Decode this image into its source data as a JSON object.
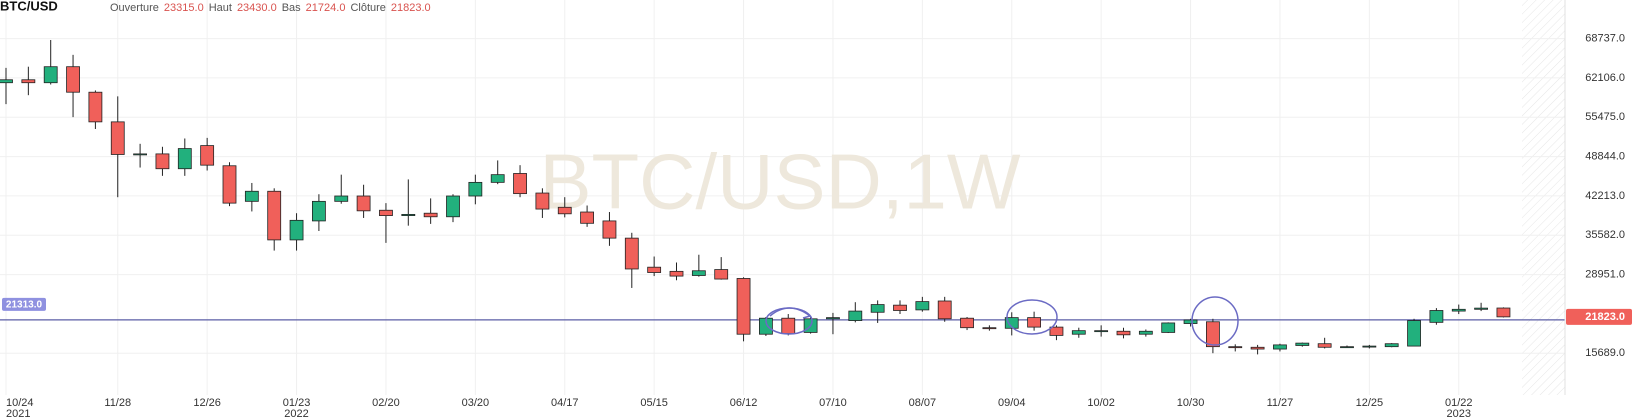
{
  "chart_data": {
    "type": "candlestick",
    "title": "BTC/USD",
    "watermark": "BTC/USD,1W",
    "ohlc_header": {
      "names": [
        "Ouverture",
        "Haut",
        "Bas",
        "Clôture"
      ],
      "values": [
        23315,
        23430,
        21724,
        21823
      ],
      "value_labels": [
        "23315.0",
        "23430.0",
        "21724.0",
        "21823.0"
      ]
    },
    "categories": [
      "10/24",
      null,
      null,
      null,
      null,
      "11/28",
      null,
      null,
      null,
      "12/26",
      null,
      null,
      null,
      "01/23",
      null,
      null,
      null,
      "02/20",
      null,
      null,
      null,
      "03/20",
      null,
      null,
      null,
      "04/17",
      null,
      null,
      null,
      "05/15",
      null,
      null,
      null,
      "06/12",
      null,
      null,
      null,
      "07/10",
      null,
      null,
      null,
      "08/07",
      null,
      null,
      null,
      "09/04",
      null,
      null,
      null,
      "10/02",
      null,
      null,
      null,
      "10/30",
      null,
      null,
      null,
      "11/27",
      null,
      null,
      null,
      "12/25",
      null,
      null,
      null,
      "01/22",
      null,
      null
    ],
    "category_years": [
      "2021",
      null,
      null,
      null,
      null,
      null,
      null,
      null,
      null,
      null,
      null,
      null,
      null,
      "2022",
      null,
      null,
      null,
      null,
      null,
      null,
      null,
      null,
      null,
      null,
      null,
      null,
      null,
      null,
      null,
      null,
      null,
      null,
      null,
      null,
      null,
      null,
      null,
      null,
      null,
      null,
      null,
      null,
      null,
      null,
      null,
      null,
      null,
      null,
      null,
      null,
      null,
      null,
      null,
      null,
      null,
      null,
      null,
      null,
      null,
      null,
      null,
      null,
      null,
      null,
      null,
      "2023",
      null,
      null
    ],
    "open": [
      61300,
      61800,
      61300,
      64000,
      59700,
      54700,
      49200,
      49300,
      46800,
      50700,
      47300,
      41300,
      43000,
      34800,
      38000,
      41300,
      42200,
      39800,
      38900,
      39300,
      38700,
      42200,
      44500,
      46000,
      42700,
      40300,
      39500,
      38000,
      35100,
      30200,
      29500,
      28800,
      29800,
      28300,
      18900,
      21600,
      19200,
      21500,
      21200,
      22600,
      23800,
      23000,
      24500,
      21600,
      20000,
      19900,
      21700,
      20100,
      18900,
      19400,
      19400,
      18900,
      19200,
      20700,
      21000,
      16800,
      16700,
      16400,
      17000,
      17300,
      16800,
      16800,
      16800,
      16900,
      20900,
      22800,
      23100,
      23315
    ],
    "high": [
      63800,
      64000,
      68500,
      66000,
      60000,
      59000,
      51000,
      50500,
      51900,
      52000,
      47900,
      44400,
      43500,
      39300,
      42500,
      45800,
      44100,
      41000,
      45000,
      41800,
      42500,
      45800,
      48200,
      47400,
      43500,
      42000,
      40600,
      39500,
      36000,
      32000,
      31000,
      32300,
      31900,
      28500,
      21800,
      22300,
      22000,
      22500,
      24300,
      24600,
      24600,
      25200,
      25200,
      21800,
      20400,
      22600,
      22700,
      20400,
      20000,
      20400,
      20000,
      19700,
      20900,
      21500,
      21500,
      17200,
      17100,
      17300,
      17500,
      18300,
      17000,
      17100,
      17400,
      21500,
      23300,
      23900,
      24200,
      23430
    ],
    "low": [
      57700,
      59200,
      61000,
      55500,
      53500,
      42000,
      47000,
      45600,
      45600,
      46500,
      40500,
      39600,
      33000,
      33000,
      36300,
      40900,
      38500,
      34300,
      37200,
      37500,
      37800,
      40800,
      44200,
      42000,
      38500,
      38600,
      37000,
      33800,
      26700,
      28700,
      28000,
      28600,
      28100,
      17700,
      18600,
      18700,
      19000,
      18900,
      20900,
      20800,
      22300,
      22700,
      21000,
      19600,
      19500,
      18700,
      19500,
      17900,
      18300,
      18500,
      18200,
      18500,
      19100,
      20200,
      15700,
      16000,
      15500,
      16000,
      16800,
      16500,
      16600,
      16500,
      16700,
      16900,
      20500,
      22300,
      22800,
      21724
    ],
    "close": [
      61800,
      61300,
      64000,
      59700,
      54700,
      49200,
      49300,
      46800,
      50200,
      47400,
      41000,
      43000,
      34800,
      38100,
      41300,
      42200,
      39700,
      38900,
      39100,
      38700,
      42200,
      44500,
      45800,
      42600,
      40000,
      39200,
      37600,
      35100,
      29900,
      29300,
      28700,
      29600,
      28200,
      18900,
      21600,
      19000,
      21500,
      21700,
      22800,
      23900,
      22900,
      24400,
      21500,
      20000,
      19900,
      21700,
      20100,
      18700,
      19500,
      19500,
      18800,
      19400,
      20800,
      21300,
      16800,
      16700,
      16400,
      17100,
      17400,
      16700,
      16800,
      16900,
      17300,
      21200,
      22900,
      23100,
      23300,
      21823
    ],
    "up_color": "#22b07d",
    "down_color": "#f0605a",
    "ylim": [
      8653,
      75245
    ],
    "yticks": [
      {
        "value": 68737,
        "label": "68737.0"
      },
      {
        "value": 62106,
        "label": "62106.0"
      },
      {
        "value": 55475,
        "label": "55475.0"
      },
      {
        "value": 48844,
        "label": "48844.0"
      },
      {
        "value": 42213,
        "label": "42213.0"
      },
      {
        "value": 35582,
        "label": "35582.0"
      },
      {
        "value": 28951,
        "label": "28951.0"
      },
      {
        "value": 15689,
        "label": "15689.0"
      }
    ],
    "horizontal_line": {
      "value": 21313,
      "label": "21313.0",
      "color": "#5b5ea6"
    },
    "last_price": {
      "value": 21823,
      "label": "21823.0"
    },
    "grid": true
  }
}
